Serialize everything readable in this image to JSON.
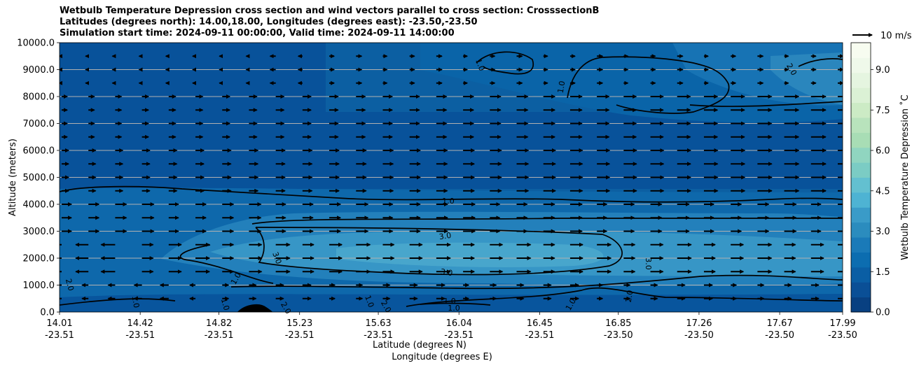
{
  "chart_data": {
    "type": "heatmap",
    "title_lines": [
      "Wetbulb Temperature Depression cross section and wind vectors parallel to cross section: CrosssectionB",
      "Latitudes (degrees north): 14.00,18.00, Longitudes (degrees east): -23.50,-23.50",
      "Simulation start time: 2024-09-11 00:00:00, Valid time: 2024-09-11 14:00:00"
    ],
    "ylabel": "Altitude (meters)",
    "xlabel_1": "Latitude (degrees N)",
    "xlabel_2": "Longitude (degrees E)",
    "ylim": [
      0,
      10000
    ],
    "yticks": [
      "0.0",
      "1000.0",
      "2000.0",
      "3000.0",
      "4000.0",
      "5000.0",
      "6000.0",
      "7000.0",
      "8000.0",
      "9000.0",
      "10000.0"
    ],
    "xticks": [
      {
        "lat": "14.01",
        "lon": "-23.51"
      },
      {
        "lat": "14.42",
        "lon": "-23.51"
      },
      {
        "lat": "14.82",
        "lon": "-23.51"
      },
      {
        "lat": "15.23",
        "lon": "-23.51"
      },
      {
        "lat": "15.63",
        "lon": "-23.51"
      },
      {
        "lat": "16.04",
        "lon": "-23.51"
      },
      {
        "lat": "16.45",
        "lon": "-23.51"
      },
      {
        "lat": "16.85",
        "lon": "-23.50"
      },
      {
        "lat": "17.26",
        "lon": "-23.50"
      },
      {
        "lat": "17.67",
        "lon": "-23.50"
      },
      {
        "lat": "17.99",
        "lon": "-23.50"
      }
    ],
    "colorbar": {
      "label": "Wetbulb Temperature Depression $^\\circ$C",
      "label_display": "Wetbulb Temperature Depression ˚C",
      "range": [
        0,
        10
      ],
      "ticks": [
        "0.0",
        "1.5",
        "3.0",
        "4.5",
        "6.0",
        "7.5",
        "9.0"
      ],
      "colormap": "GnBu_r"
    },
    "quiver_key": "10 m/s",
    "contour_labels": [
      "1.0",
      "2.0",
      "3.0"
    ],
    "field_summary": [
      {
        "altitude_m": 500,
        "value_C": 1.5
      },
      {
        "altitude_m": 2000,
        "value_C": 3.2
      },
      {
        "altitude_m": 3000,
        "value_C": 2.5
      },
      {
        "altitude_m": 4000,
        "value_C": 1.0
      },
      {
        "altitude_m": 6000,
        "value_C": 0.4
      },
      {
        "altitude_m": 8500,
        "value_C": 1.2
      }
    ],
    "grid": true
  }
}
